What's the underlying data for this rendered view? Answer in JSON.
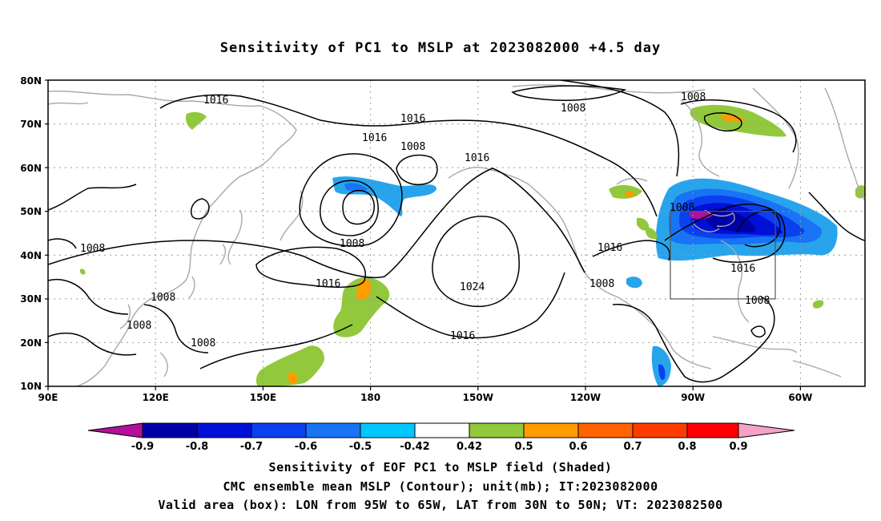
{
  "title": "Sensitivity of PC1 to MSLP at 2023082000 +4.5 day",
  "map": {
    "lat_ticks": [
      "80N",
      "70N",
      "60N",
      "50N",
      "40N",
      "30N",
      "20N",
      "10N"
    ],
    "lon_ticks": [
      "90E",
      "120E",
      "150E",
      "180",
      "150W",
      "120W",
      "90W",
      "60W"
    ],
    "contour_labels": [
      "1016",
      "1016",
      "1016",
      "1008",
      "1008",
      "1016",
      "1008",
      "1008",
      "1008",
      "1008",
      "1008",
      "1008",
      "1016",
      "1024",
      "1016",
      "1016",
      "1008",
      "1016",
      "1008",
      "1008"
    ],
    "valid_box": {
      "lon_min": -95,
      "lon_max": -65,
      "lat_min": 30,
      "lat_max": 50
    },
    "colors": {
      "coast": "#a8a8a8",
      "contour": "#000000",
      "grid": "#9a9a9a"
    }
  },
  "colorbar": {
    "labels": [
      "-0.9",
      "-0.8",
      "-0.7",
      "-0.6",
      "-0.5",
      "-0.42",
      "0.42",
      "0.5",
      "0.6",
      "0.7",
      "0.8",
      "0.9"
    ],
    "colors": [
      "#b10f9c",
      "#0000a8",
      "#0010d8",
      "#0a40f0",
      "#1874f4",
      "#28a4ec",
      "#00c8ff",
      "#ffffff",
      "#92c83c",
      "#ff9c00",
      "#ff6400",
      "#ff3c00",
      "#ff0000",
      "#f7a1c8"
    ]
  },
  "captions": {
    "line1": "Sensitivity of EOF PC1 to MSLP field (Shaded)",
    "line2": "CMC ensemble mean MSLP (Contour); unit(mb); IT:2023082000",
    "line3": "Valid area (box): LON from 95W to 65W, LAT from 30N to 50N; VT: 2023082500"
  }
}
